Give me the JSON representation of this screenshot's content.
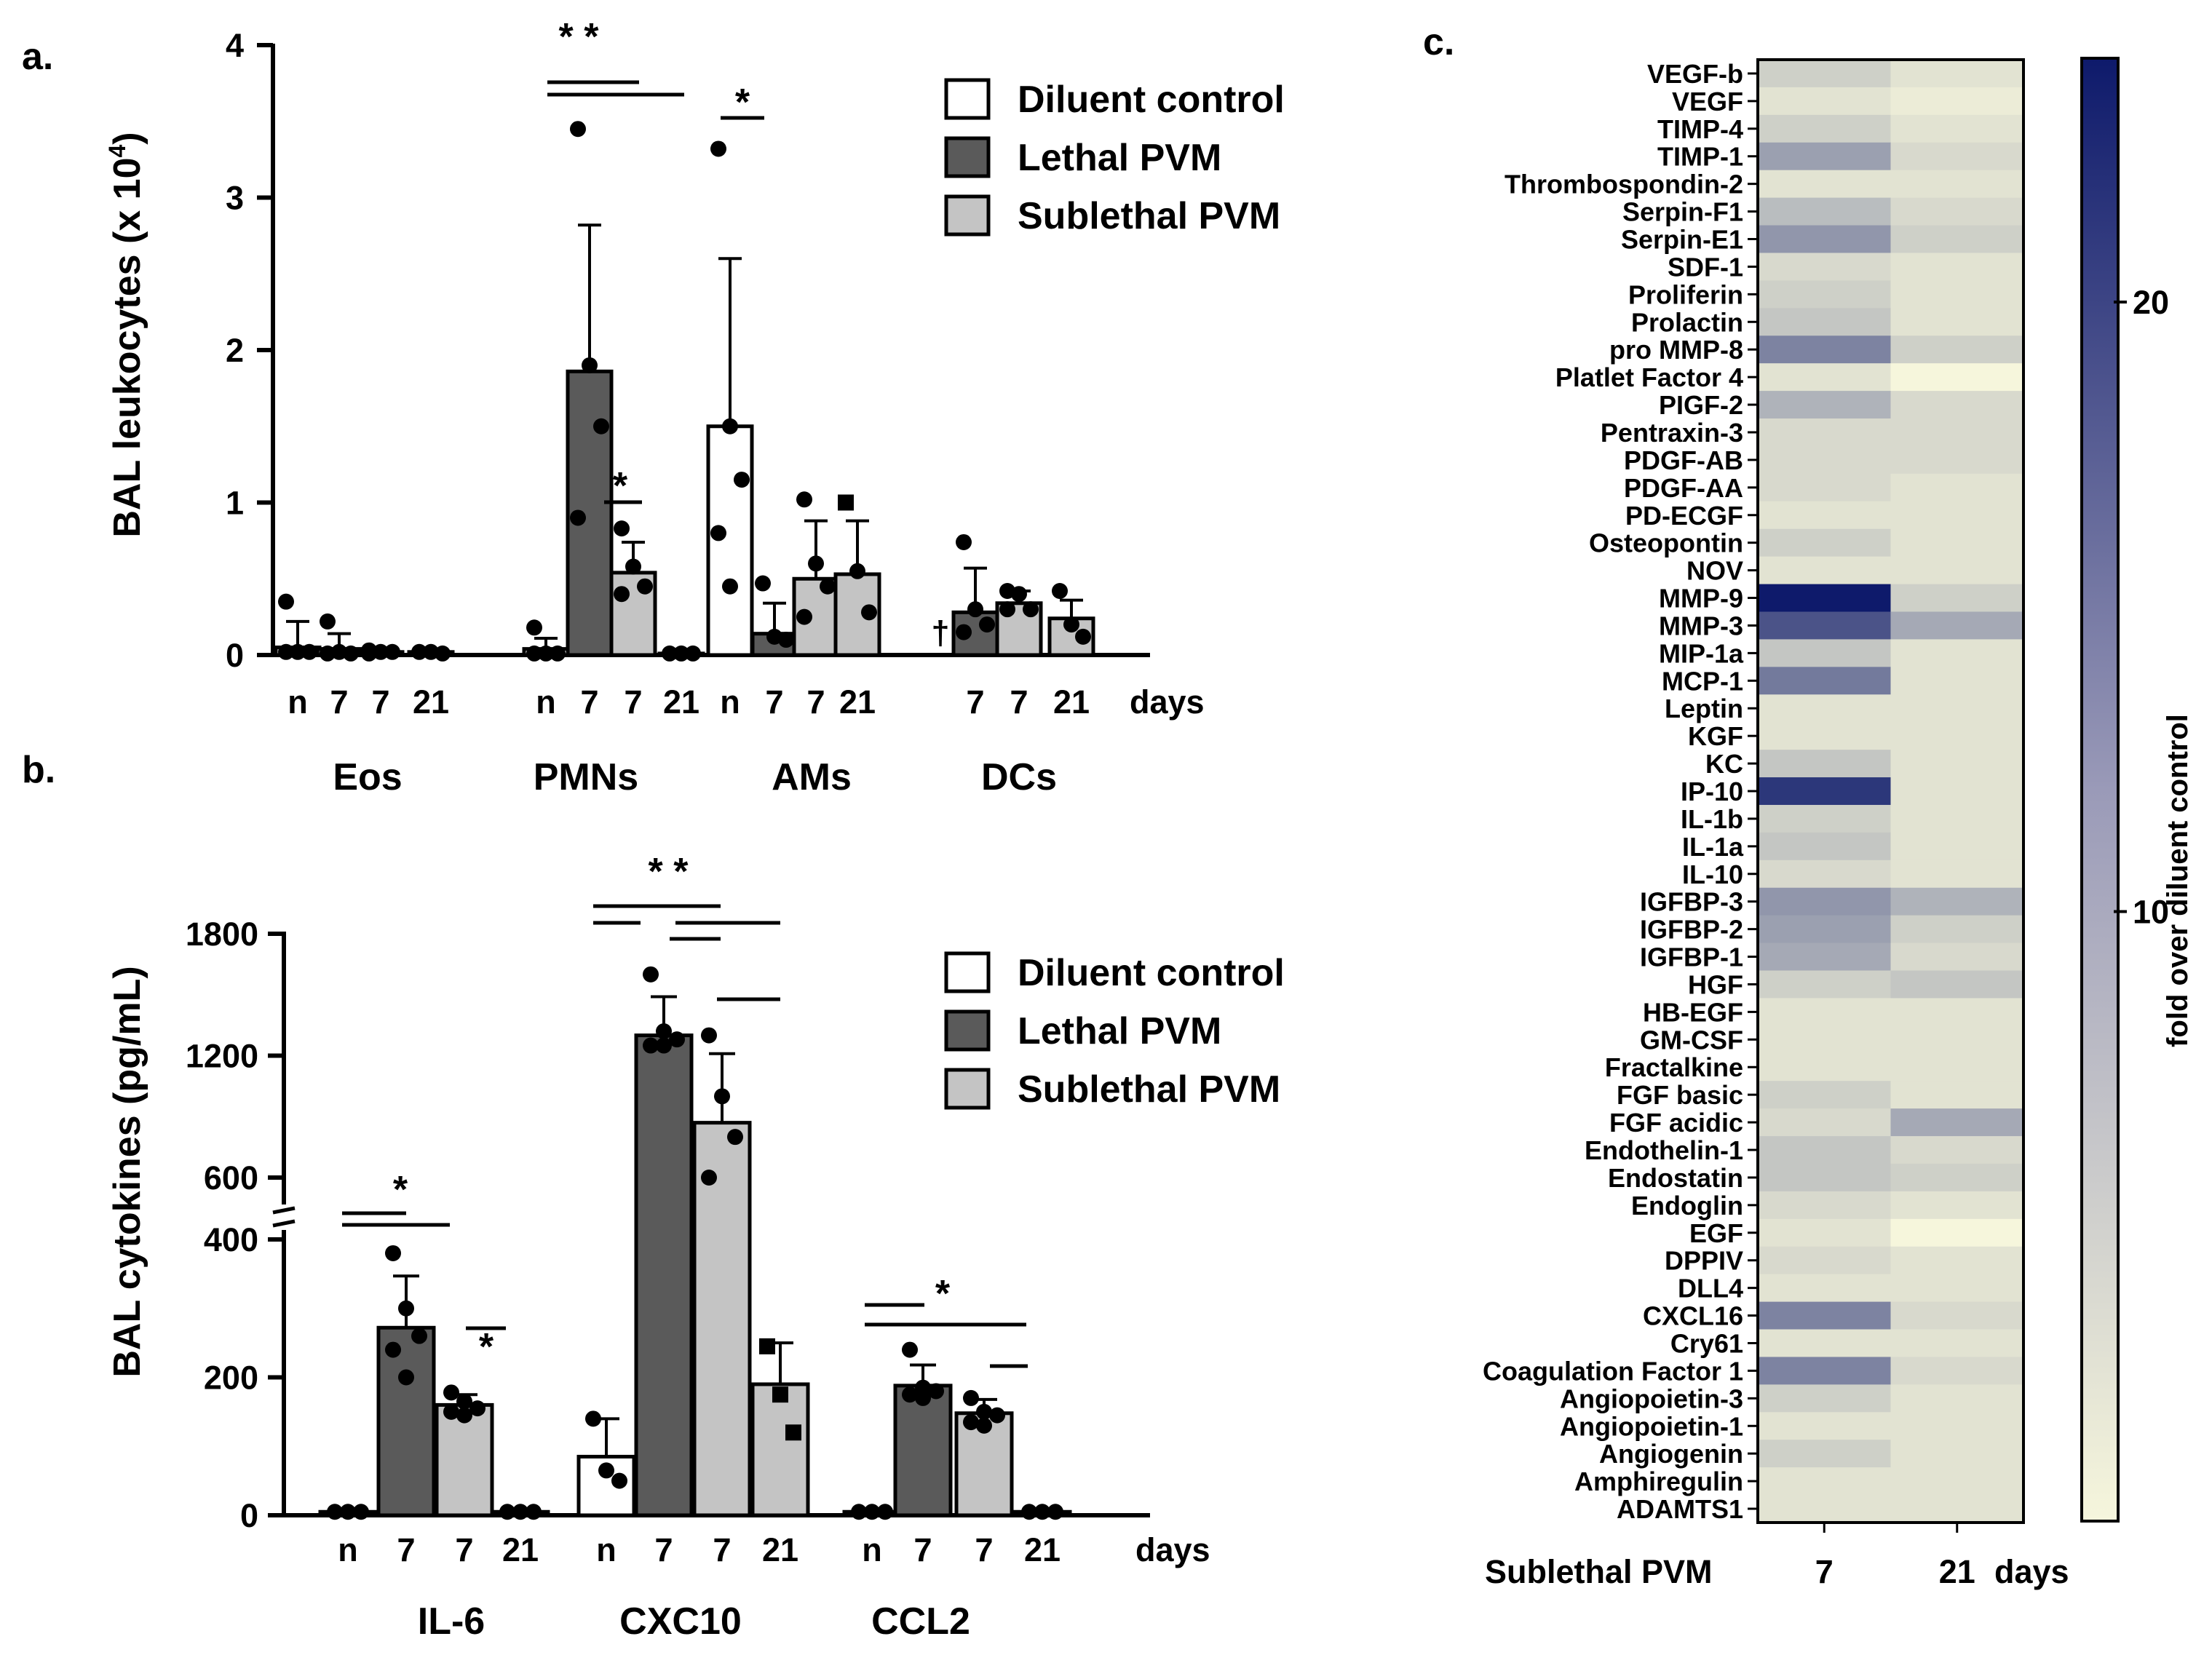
{
  "chart_data": [
    {
      "id": "a",
      "type": "bar",
      "panel_label": "a.",
      "ylabel": "BAL leukocytes (x 10",
      "ylabel_sup": "4",
      "ylabel_close": ")",
      "ylim": [
        0,
        4
      ],
      "yticks": [
        "0",
        "1",
        "2",
        "3",
        "4"
      ],
      "x_unit": "days",
      "legend": [
        "Diluent control",
        "Lethal PVM",
        "Sublethal PVM"
      ],
      "groups": [
        {
          "name": "Eos",
          "bars": [
            {
              "series": "diluent",
              "x": "n",
              "value": 0.05,
              "sd": 0.17,
              "points": [
                0.35,
                0.02,
                0.02,
                0.02
              ]
            },
            {
              "series": "lethal",
              "x": "7",
              "value": 0.04,
              "sd": 0.1,
              "points": [
                0.22,
                0.02,
                0.01,
                0.01
              ]
            },
            {
              "series": "sublethal",
              "x": "7",
              "value": 0.02,
              "sd": 0.01,
              "points": [
                0.03,
                0.02,
                0.02,
                0.01
              ]
            },
            {
              "series": "sublethal",
              "x": "21",
              "value": 0.02,
              "sd": 0.01,
              "points": [
                0.02,
                0.02,
                0.01
              ]
            }
          ]
        },
        {
          "name": "PMNs",
          "bars": [
            {
              "series": "diluent",
              "x": "n",
              "value": 0.04,
              "sd": 0.07,
              "points": [
                0.18,
                0.01,
                0.01,
                0.01
              ]
            },
            {
              "series": "lethal",
              "x": "7",
              "value": 1.86,
              "sd": 0.96,
              "points": [
                3.45,
                1.9,
                1.5,
                0.9
              ]
            },
            {
              "series": "sublethal",
              "x": "7",
              "value": 0.54,
              "sd": 0.2,
              "points": [
                0.83,
                0.58,
                0.45,
                0.4
              ]
            },
            {
              "series": "sublethal",
              "x": "21",
              "value": 0.01,
              "sd": 0.01,
              "points": [
                0.01,
                0.01,
                0.01
              ]
            }
          ]
        },
        {
          "name": "AMs",
          "bars": [
            {
              "series": "diluent",
              "x": "n",
              "value": 1.5,
              "sd": 1.1,
              "points": [
                3.32,
                1.5,
                1.15,
                0.8,
                0.45
              ]
            },
            {
              "series": "lethal",
              "x": "7",
              "value": 0.14,
              "sd": 0.2,
              "points": [
                0.47,
                0.12,
                0.1
              ]
            },
            {
              "series": "sublethal",
              "x": "7",
              "value": 0.5,
              "sd": 0.38,
              "points": [
                1.02,
                0.6,
                0.45,
                0.25
              ]
            },
            {
              "series": "sublethal",
              "x": "21",
              "value": 0.53,
              "sd": 0.35,
              "points": [
                1.0,
                0.55,
                0.28
              ]
            }
          ]
        },
        {
          "name": "DCs",
          "bars": [
            {
              "series": "lethal",
              "x": "7",
              "value": 0.28,
              "sd": 0.29,
              "points": [
                0.74,
                0.3,
                0.2,
                0.15
              ]
            },
            {
              "series": "sublethal",
              "x": "7",
              "value": 0.34,
              "sd": 0.08,
              "points": [
                0.42,
                0.4,
                0.3,
                0.3
              ]
            },
            {
              "series": "sublethal",
              "x": "21",
              "value": 0.24,
              "sd": 0.12,
              "points": [
                0.42,
                0.2,
                0.12
              ]
            }
          ]
        }
      ],
      "annotations": [
        "* *",
        "*",
        "*",
        "†"
      ]
    },
    {
      "id": "b",
      "type": "bar",
      "panel_label": "b.",
      "ylabel": "BAL cytokines (pg/mL)",
      "y_axis_break": [
        400,
        500
      ],
      "yticks_lower": [
        "0",
        "200",
        "400"
      ],
      "yticks_upper": [
        "600",
        "1200",
        "1800"
      ],
      "x_unit": "days",
      "legend": [
        "Diluent control",
        "Lethal PVM",
        "Sublethal PVM"
      ],
      "groups": [
        {
          "name": "IL-6",
          "bars": [
            {
              "series": "diluent",
              "x": "n",
              "value": 5,
              "sd": 1,
              "points": [
                5,
                5,
                5
              ]
            },
            {
              "series": "lethal",
              "x": "7",
              "value": 272,
              "sd": 75,
              "points": [
                380,
                300,
                260,
                240,
                200
              ]
            },
            {
              "series": "sublethal",
              "x": "7",
              "value": 160,
              "sd": 15,
              "points": [
                178,
                165,
                155,
                150,
                145
              ]
            },
            {
              "series": "sublethal",
              "x": "21",
              "value": 5,
              "sd": 1,
              "points": [
                5,
                5,
                5
              ]
            }
          ]
        },
        {
          "name": "CXC10",
          "bars": [
            {
              "series": "diluent",
              "x": "n",
              "value": 85,
              "sd": 55,
              "points": [
                140,
                65,
                50
              ]
            },
            {
              "series": "lethal",
              "x": "7",
              "value": 1300,
              "sd": 190,
              "points": [
                1600,
                1320,
                1280,
                1250,
                1250
              ]
            },
            {
              "series": "sublethal",
              "x": "7",
              "value": 870,
              "sd": 340,
              "points": [
                1300,
                1000,
                800,
                600
              ]
            },
            {
              "series": "sublethal",
              "x": "21",
              "value": 190,
              "sd": 60,
              "points": [
                245,
                175,
                120
              ]
            }
          ]
        },
        {
          "name": "CCL2",
          "bars": [
            {
              "series": "diluent",
              "x": "n",
              "value": 5,
              "sd": 1,
              "points": [
                5,
                5,
                5
              ]
            },
            {
              "series": "lethal",
              "x": "7",
              "value": 188,
              "sd": 30,
              "points": [
                240,
                185,
                180,
                175,
                170
              ]
            },
            {
              "series": "sublethal",
              "x": "7",
              "value": 148,
              "sd": 20,
              "points": [
                170,
                150,
                145,
                135,
                130
              ]
            },
            {
              "series": "sublethal",
              "x": "21",
              "value": 5,
              "sd": 1,
              "points": [
                5,
                5,
                5
              ]
            }
          ]
        }
      ],
      "annotations": [
        "*",
        "*",
        "* *",
        "*"
      ]
    },
    {
      "id": "c",
      "type": "heatmap",
      "panel_label": "c.",
      "row_labels": [
        "VEGF-b",
        "VEGF",
        "TIMP-4",
        "TIMP-1",
        "Thrombospondin-2",
        "Serpin-F1",
        "Serpin-E1",
        "SDF-1",
        "Proliferin",
        "Prolactin",
        "pro MMP-8",
        "Platlet Factor 4",
        "PIGF-2",
        "Pentraxin-3",
        "PDGF-AB",
        "PDGF-AA",
        "PD-ECGF",
        "Osteopontin",
        "NOV",
        "MMP-9",
        "MMP-3",
        "MIP-1a",
        "MCP-1",
        "Leptin",
        "KGF",
        "KC",
        "IP-10",
        "IL-1b",
        "IL-1a",
        "IL-10",
        "IGFBP-3",
        "IGFBP-2",
        "IGFBP-1",
        "HGF",
        "HB-EGF",
        "GM-CSF",
        "Fractalkine",
        "FGF basic",
        "FGF acidic",
        "Endothelin-1",
        "Endostatin",
        "Endoglin",
        "EGF",
        "DPPIV",
        "DLL4",
        "CXCL16",
        "Cry61",
        "Coagulation Factor 1",
        "Angiopoietin-3",
        "Angiopoietin-1",
        "Angiogenin",
        "Amphiregulin",
        "ADAMTS1"
      ],
      "col_labels": [
        "7",
        "21"
      ],
      "col_title": "Sublethal PVM",
      "col_unit": "days",
      "values": [
        [
          5,
          3
        ],
        [
          3,
          2
        ],
        [
          5,
          3
        ],
        [
          10,
          4
        ],
        [
          3,
          3
        ],
        [
          7,
          4
        ],
        [
          11,
          5
        ],
        [
          4,
          3
        ],
        [
          5,
          3
        ],
        [
          6,
          3
        ],
        [
          13,
          5
        ],
        [
          3,
          1
        ],
        [
          8,
          4
        ],
        [
          4,
          4
        ],
        [
          4,
          4
        ],
        [
          4,
          3
        ],
        [
          3,
          3
        ],
        [
          5,
          3
        ],
        [
          3,
          3
        ],
        [
          24,
          5
        ],
        [
          18,
          9
        ],
        [
          6,
          3
        ],
        [
          14,
          3
        ],
        [
          3,
          3
        ],
        [
          3,
          3
        ],
        [
          6,
          3
        ],
        [
          21,
          3
        ],
        [
          5,
          3
        ],
        [
          6,
          3
        ],
        [
          4,
          3
        ],
        [
          11,
          8
        ],
        [
          10,
          5
        ],
        [
          9,
          4
        ],
        [
          5,
          6
        ],
        [
          3,
          3
        ],
        [
          3,
          3
        ],
        [
          3,
          3
        ],
        [
          5,
          3
        ],
        [
          4,
          9
        ],
        [
          6,
          4
        ],
        [
          6,
          5
        ],
        [
          4,
          3
        ],
        [
          3,
          1
        ],
        [
          4,
          3
        ],
        [
          3,
          3
        ],
        [
          13,
          4
        ],
        [
          3,
          3
        ],
        [
          13,
          4
        ],
        [
          5,
          3
        ],
        [
          3,
          3
        ],
        [
          5,
          3
        ],
        [
          3,
          3
        ],
        [
          3,
          3
        ]
      ],
      "colorbar": {
        "label": "fold over diluent control",
        "range": [
          0,
          24
        ],
        "ticks": [
          "10",
          "20"
        ],
        "low_color": "#f6f6dc",
        "high_color": "#0e1a6b"
      }
    }
  ],
  "colors": {
    "diluent": "#ffffff",
    "lethal": "#5a5a5a",
    "sublethal": "#c4c4c4"
  }
}
